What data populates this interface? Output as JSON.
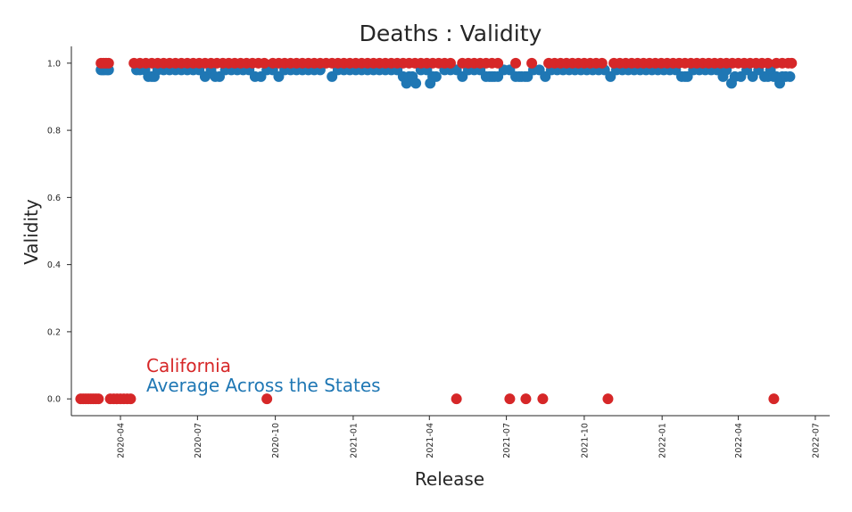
{
  "chart_data": {
    "type": "scatter",
    "title": "Deaths : Validity",
    "xlabel": "Release",
    "ylabel": "Validity",
    "xlim": [
      "2020-02-03",
      "2022-07-18"
    ],
    "ylim": [
      -0.05,
      1.05
    ],
    "x_ticks": [
      "2020-04",
      "2020-07",
      "2020-10",
      "2021-01",
      "2021-04",
      "2021-07",
      "2021-10",
      "2022-01",
      "2022-04",
      "2022-07"
    ],
    "y_ticks": [
      "0.0",
      "0.2",
      "0.4",
      "0.6",
      "0.8",
      "1.0"
    ],
    "grid": false,
    "legend_position": "bottom-left",
    "series": [
      {
        "name": "Average Across the States",
        "color": "#1f77b4",
        "points": [
          [
            "2020-03-09",
            0.98
          ],
          [
            "2020-03-11",
            0.98
          ],
          [
            "2020-03-13",
            0.98
          ],
          [
            "2020-03-16",
            0.98
          ],
          [
            "2020-03-18",
            0.98
          ],
          [
            "2020-04-20",
            0.98
          ],
          [
            "2020-04-24",
            0.98
          ],
          [
            "2020-04-30",
            0.98
          ],
          [
            "2020-05-04",
            0.96
          ],
          [
            "2020-05-08",
            0.96
          ],
          [
            "2020-05-11",
            0.96
          ],
          [
            "2020-05-15",
            0.98
          ],
          [
            "2020-05-22",
            0.98
          ],
          [
            "2020-05-29",
            0.98
          ],
          [
            "2020-06-05",
            0.98
          ],
          [
            "2020-06-12",
            0.98
          ],
          [
            "2020-06-19",
            0.98
          ],
          [
            "2020-06-26",
            0.98
          ],
          [
            "2020-07-03",
            0.98
          ],
          [
            "2020-07-10",
            0.96
          ],
          [
            "2020-07-17",
            0.98
          ],
          [
            "2020-07-22",
            0.96
          ],
          [
            "2020-07-27",
            0.96
          ],
          [
            "2020-08-03",
            0.98
          ],
          [
            "2020-08-10",
            0.98
          ],
          [
            "2020-08-17",
            0.98
          ],
          [
            "2020-08-24",
            0.98
          ],
          [
            "2020-08-31",
            0.98
          ],
          [
            "2020-09-07",
            0.96
          ],
          [
            "2020-09-14",
            0.96
          ],
          [
            "2020-09-21",
            0.98
          ],
          [
            "2020-09-28",
            0.98
          ],
          [
            "2020-10-05",
            0.96
          ],
          [
            "2020-10-12",
            0.98
          ],
          [
            "2020-10-19",
            0.98
          ],
          [
            "2020-10-26",
            0.98
          ],
          [
            "2020-11-02",
            0.98
          ],
          [
            "2020-11-09",
            0.98
          ],
          [
            "2020-11-16",
            0.98
          ],
          [
            "2020-11-23",
            0.98
          ],
          [
            "2020-12-07",
            0.96
          ],
          [
            "2020-12-14",
            0.98
          ],
          [
            "2020-12-21",
            0.98
          ],
          [
            "2020-12-28",
            0.98
          ],
          [
            "2021-01-04",
            0.98
          ],
          [
            "2021-01-11",
            0.98
          ],
          [
            "2021-01-18",
            0.98
          ],
          [
            "2021-01-25",
            0.98
          ],
          [
            "2021-02-01",
            0.98
          ],
          [
            "2021-02-08",
            0.98
          ],
          [
            "2021-02-15",
            0.98
          ],
          [
            "2021-02-22",
            0.98
          ],
          [
            "2021-03-01",
            0.96
          ],
          [
            "2021-03-05",
            0.94
          ],
          [
            "2021-03-08",
            0.96
          ],
          [
            "2021-03-12",
            0.96
          ],
          [
            "2021-03-16",
            0.94
          ],
          [
            "2021-03-22",
            0.98
          ],
          [
            "2021-03-29",
            0.98
          ],
          [
            "2021-04-02",
            0.94
          ],
          [
            "2021-04-05",
            0.96
          ],
          [
            "2021-04-09",
            0.96
          ],
          [
            "2021-04-19",
            0.98
          ],
          [
            "2021-04-26",
            0.98
          ],
          [
            "2021-05-03",
            0.98
          ],
          [
            "2021-05-10",
            0.96
          ],
          [
            "2021-05-17",
            0.98
          ],
          [
            "2021-05-24",
            0.98
          ],
          [
            "2021-05-31",
            0.98
          ],
          [
            "2021-06-07",
            0.96
          ],
          [
            "2021-06-11",
            0.96
          ],
          [
            "2021-06-14",
            0.96
          ],
          [
            "2021-06-17",
            0.96
          ],
          [
            "2021-06-21",
            0.96
          ],
          [
            "2021-06-28",
            0.98
          ],
          [
            "2021-07-05",
            0.98
          ],
          [
            "2021-07-12",
            0.96
          ],
          [
            "2021-07-16",
            0.96
          ],
          [
            "2021-07-19",
            0.96
          ],
          [
            "2021-07-23",
            0.96
          ],
          [
            "2021-07-26",
            0.96
          ],
          [
            "2021-08-02",
            0.98
          ],
          [
            "2021-08-09",
            0.98
          ],
          [
            "2021-08-16",
            0.96
          ],
          [
            "2021-08-23",
            0.98
          ],
          [
            "2021-08-30",
            0.98
          ],
          [
            "2021-09-06",
            0.98
          ],
          [
            "2021-09-13",
            0.98
          ],
          [
            "2021-09-20",
            0.98
          ],
          [
            "2021-09-27",
            0.98
          ],
          [
            "2021-10-04",
            0.98
          ],
          [
            "2021-10-11",
            0.98
          ],
          [
            "2021-10-18",
            0.98
          ],
          [
            "2021-10-25",
            0.98
          ],
          [
            "2021-11-01",
            0.96
          ],
          [
            "2021-11-08",
            0.98
          ],
          [
            "2021-11-15",
            0.98
          ],
          [
            "2021-11-22",
            0.98
          ],
          [
            "2021-11-29",
            0.98
          ],
          [
            "2021-12-06",
            0.98
          ],
          [
            "2021-12-13",
            0.98
          ],
          [
            "2021-12-20",
            0.98
          ],
          [
            "2021-12-27",
            0.98
          ],
          [
            "2022-01-03",
            0.98
          ],
          [
            "2022-01-10",
            0.98
          ],
          [
            "2022-01-17",
            0.98
          ],
          [
            "2022-01-24",
            0.96
          ],
          [
            "2022-01-28",
            0.96
          ],
          [
            "2022-01-31",
            0.96
          ],
          [
            "2022-02-07",
            0.98
          ],
          [
            "2022-02-14",
            0.98
          ],
          [
            "2022-02-21",
            0.98
          ],
          [
            "2022-02-28",
            0.98
          ],
          [
            "2022-03-07",
            0.98
          ],
          [
            "2022-03-14",
            0.96
          ],
          [
            "2022-03-18",
            0.98
          ],
          [
            "2022-03-24",
            0.94
          ],
          [
            "2022-03-28",
            0.96
          ],
          [
            "2022-04-04",
            0.96
          ],
          [
            "2022-04-11",
            0.98
          ],
          [
            "2022-04-18",
            0.96
          ],
          [
            "2022-04-25",
            0.98
          ],
          [
            "2022-05-02",
            0.96
          ],
          [
            "2022-05-06",
            0.96
          ],
          [
            "2022-05-09",
            0.98
          ],
          [
            "2022-05-13",
            0.96
          ],
          [
            "2022-05-16",
            0.96
          ],
          [
            "2022-05-20",
            0.94
          ],
          [
            "2022-05-23",
            0.96
          ],
          [
            "2022-05-27",
            0.96
          ],
          [
            "2022-06-01",
            0.96
          ]
        ]
      },
      {
        "name": "California",
        "color": "#d62728",
        "points": [
          [
            "2020-02-14",
            0.0
          ],
          [
            "2020-02-17",
            0.0
          ],
          [
            "2020-02-20",
            0.0
          ],
          [
            "2020-02-23",
            0.0
          ],
          [
            "2020-02-26",
            0.0
          ],
          [
            "2020-02-29",
            0.0
          ],
          [
            "2020-03-03",
            0.0
          ],
          [
            "2020-03-06",
            0.0
          ],
          [
            "2020-03-09",
            1.0
          ],
          [
            "2020-03-12",
            1.0
          ],
          [
            "2020-03-15",
            1.0
          ],
          [
            "2020-03-18",
            1.0
          ],
          [
            "2020-03-20",
            0.0
          ],
          [
            "2020-03-24",
            0.0
          ],
          [
            "2020-03-28",
            0.0
          ],
          [
            "2020-04-01",
            0.0
          ],
          [
            "2020-04-05",
            0.0
          ],
          [
            "2020-04-09",
            0.0
          ],
          [
            "2020-04-13",
            0.0
          ],
          [
            "2020-04-17",
            1.0
          ],
          [
            "2020-04-24",
            1.0
          ],
          [
            "2020-05-01",
            1.0
          ],
          [
            "2020-05-08",
            1.0
          ],
          [
            "2020-05-15",
            1.0
          ],
          [
            "2020-05-22",
            1.0
          ],
          [
            "2020-05-29",
            1.0
          ],
          [
            "2020-06-05",
            1.0
          ],
          [
            "2020-06-12",
            1.0
          ],
          [
            "2020-06-19",
            1.0
          ],
          [
            "2020-06-26",
            1.0
          ],
          [
            "2020-07-03",
            1.0
          ],
          [
            "2020-07-10",
            1.0
          ],
          [
            "2020-07-17",
            1.0
          ],
          [
            "2020-07-24",
            1.0
          ],
          [
            "2020-07-31",
            1.0
          ],
          [
            "2020-08-07",
            1.0
          ],
          [
            "2020-08-14",
            1.0
          ],
          [
            "2020-08-21",
            1.0
          ],
          [
            "2020-08-28",
            1.0
          ],
          [
            "2020-09-04",
            1.0
          ],
          [
            "2020-09-11",
            1.0
          ],
          [
            "2020-09-18",
            1.0
          ],
          [
            "2020-09-21",
            0.0
          ],
          [
            "2020-09-28",
            1.0
          ],
          [
            "2020-10-05",
            1.0
          ],
          [
            "2020-10-12",
            1.0
          ],
          [
            "2020-10-19",
            1.0
          ],
          [
            "2020-10-26",
            1.0
          ],
          [
            "2020-11-02",
            1.0
          ],
          [
            "2020-11-09",
            1.0
          ],
          [
            "2020-11-16",
            1.0
          ],
          [
            "2020-11-23",
            1.0
          ],
          [
            "2020-11-30",
            1.0
          ],
          [
            "2020-12-07",
            1.0
          ],
          [
            "2020-12-14",
            1.0
          ],
          [
            "2020-12-21",
            1.0
          ],
          [
            "2020-12-28",
            1.0
          ],
          [
            "2021-01-04",
            1.0
          ],
          [
            "2021-01-11",
            1.0
          ],
          [
            "2021-01-18",
            1.0
          ],
          [
            "2021-01-25",
            1.0
          ],
          [
            "2021-02-01",
            1.0
          ],
          [
            "2021-02-08",
            1.0
          ],
          [
            "2021-02-15",
            1.0
          ],
          [
            "2021-02-22",
            1.0
          ],
          [
            "2021-03-01",
            1.0
          ],
          [
            "2021-03-08",
            1.0
          ],
          [
            "2021-03-15",
            1.0
          ],
          [
            "2021-03-22",
            1.0
          ],
          [
            "2021-03-29",
            1.0
          ],
          [
            "2021-04-05",
            1.0
          ],
          [
            "2021-04-12",
            1.0
          ],
          [
            "2021-04-19",
            1.0
          ],
          [
            "2021-04-26",
            1.0
          ],
          [
            "2021-05-03",
            0.0
          ],
          [
            "2021-05-10",
            1.0
          ],
          [
            "2021-05-17",
            1.0
          ],
          [
            "2021-05-24",
            1.0
          ],
          [
            "2021-05-31",
            1.0
          ],
          [
            "2021-06-07",
            1.0
          ],
          [
            "2021-06-14",
            1.0
          ],
          [
            "2021-06-21",
            1.0
          ],
          [
            "2021-07-05",
            0.0
          ],
          [
            "2021-07-12",
            1.0
          ],
          [
            "2021-07-24",
            0.0
          ],
          [
            "2021-07-31",
            1.0
          ],
          [
            "2021-08-13",
            0.0
          ],
          [
            "2021-08-20",
            1.0
          ],
          [
            "2021-08-27",
            1.0
          ],
          [
            "2021-09-03",
            1.0
          ],
          [
            "2021-09-10",
            1.0
          ],
          [
            "2021-09-17",
            1.0
          ],
          [
            "2021-09-24",
            1.0
          ],
          [
            "2021-10-01",
            1.0
          ],
          [
            "2021-10-08",
            1.0
          ],
          [
            "2021-10-15",
            1.0
          ],
          [
            "2021-10-22",
            1.0
          ],
          [
            "2021-10-29",
            0.0
          ],
          [
            "2021-11-05",
            1.0
          ],
          [
            "2021-11-12",
            1.0
          ],
          [
            "2021-11-19",
            1.0
          ],
          [
            "2021-11-26",
            1.0
          ],
          [
            "2021-12-03",
            1.0
          ],
          [
            "2021-12-10",
            1.0
          ],
          [
            "2021-12-17",
            1.0
          ],
          [
            "2021-12-24",
            1.0
          ],
          [
            "2021-12-31",
            1.0
          ],
          [
            "2022-01-07",
            1.0
          ],
          [
            "2022-01-14",
            1.0
          ],
          [
            "2022-01-21",
            1.0
          ],
          [
            "2022-01-28",
            1.0
          ],
          [
            "2022-02-04",
            1.0
          ],
          [
            "2022-02-11",
            1.0
          ],
          [
            "2022-02-18",
            1.0
          ],
          [
            "2022-02-25",
            1.0
          ],
          [
            "2022-03-04",
            1.0
          ],
          [
            "2022-03-11",
            1.0
          ],
          [
            "2022-03-18",
            1.0
          ],
          [
            "2022-03-25",
            1.0
          ],
          [
            "2022-04-01",
            1.0
          ],
          [
            "2022-04-08",
            1.0
          ],
          [
            "2022-04-15",
            1.0
          ],
          [
            "2022-04-22",
            1.0
          ],
          [
            "2022-04-29",
            1.0
          ],
          [
            "2022-05-06",
            1.0
          ],
          [
            "2022-05-13",
            0.0
          ],
          [
            "2022-05-16",
            1.0
          ],
          [
            "2022-05-23",
            1.0
          ],
          [
            "2022-05-30",
            1.0
          ],
          [
            "2022-06-03",
            1.0
          ]
        ]
      }
    ]
  }
}
